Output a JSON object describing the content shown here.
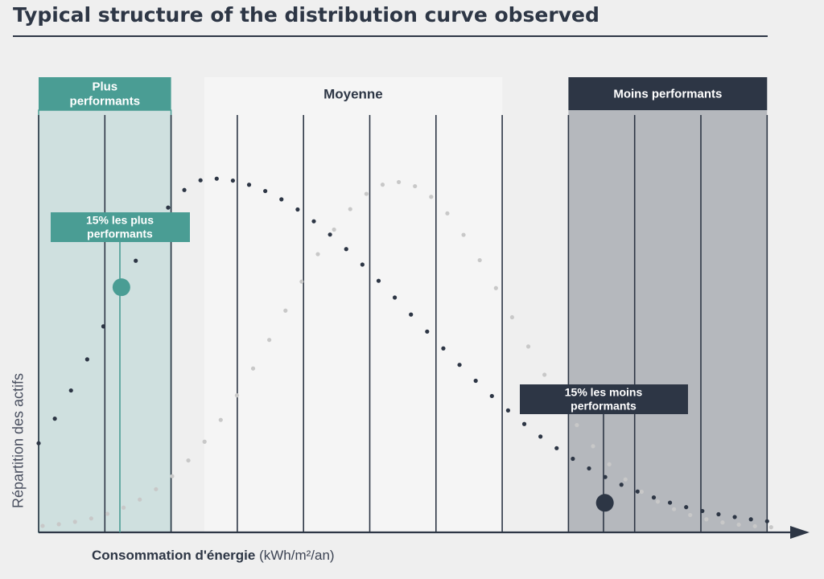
{
  "title": "Typical structure of the distribution curve observed",
  "colors": {
    "background": "#efefef",
    "title": "#2d3645",
    "teal": "#4a9d94",
    "teal_zone": "#cfe0df",
    "dark": "#2d3645",
    "dark_zone": "#b5b8bd",
    "middle_zone": "#f5f5f5",
    "grey_dots": "#c8c8c8",
    "gridline": "#2d3645"
  },
  "chart_data": {
    "type": "scatter",
    "title": "Typical structure of the distribution curve observed",
    "xlabel": "Consommation d'énergie",
    "xlabel_unit": "(kWh/m²/an)",
    "ylabel": "Répartition des actifs",
    "x_tick_labels": false,
    "y_tick_labels": false,
    "gridlines": "vertical",
    "xlim": [
      0,
      11
    ],
    "ylim": [
      0,
      1
    ],
    "zones": [
      {
        "name": "Plus performants",
        "x_range": [
          0,
          2
        ],
        "color": "#4a9d94"
      },
      {
        "name": "Moyenne",
        "x_range": [
          2.5,
          7
        ],
        "color": "#f5f5f5"
      },
      {
        "name": "Moins performants",
        "x_range": [
          8,
          11
        ],
        "color": "#2d3645"
      }
    ],
    "series": [
      {
        "color": "#2d3645",
        "style": "dotted",
        "mean": 2.6,
        "sd_left": 1.55,
        "sd_right": 3.05,
        "x_start": 0,
        "x_end": 11,
        "dot_count": 46,
        "peak": 1.0
      },
      {
        "color": "#c8c8c8",
        "style": "dotted",
        "mean": 5.35,
        "sd_left": 1.75,
        "sd_right": 1.75,
        "x_start": 0,
        "x_end": 11,
        "dot_count": 46,
        "peak": 0.99
      }
    ],
    "markers": [
      {
        "label": "15% les plus performants",
        "x": 1.25,
        "y": 0.69,
        "color": "#4a9d94"
      },
      {
        "label": "15% les moins performants",
        "x": 8.55,
        "y": 0.075,
        "color": "#2d3645"
      }
    ]
  }
}
